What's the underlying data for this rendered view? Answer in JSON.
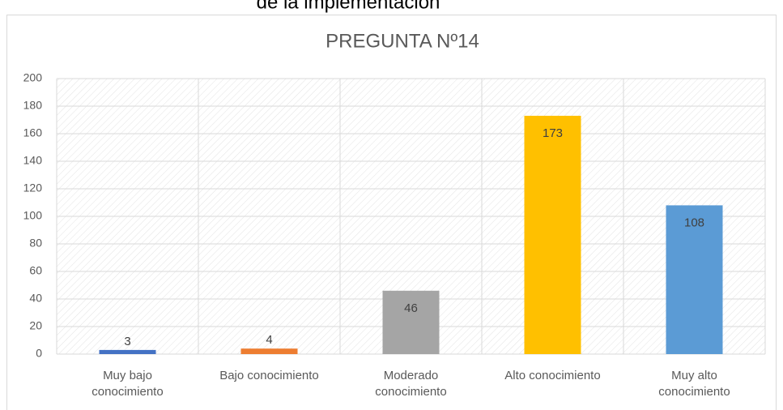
{
  "header_text": "de la implementación",
  "chart_data": {
    "type": "bar",
    "title": "PREGUNTA Nº14",
    "categories": [
      "Muy bajo conocimiento",
      "Bajo conocimiento",
      "Moderado conocimiento",
      "Alto conocimiento",
      "Muy alto conocimiento"
    ],
    "values": [
      3,
      4,
      46,
      173,
      108
    ],
    "colors": [
      "#4472c4",
      "#ed7d31",
      "#a5a5a5",
      "#ffc000",
      "#5b9bd5"
    ],
    "ylim": [
      0,
      200
    ],
    "yticks": [
      0,
      20,
      40,
      60,
      80,
      100,
      120,
      140,
      160,
      180,
      200
    ],
    "grid": true
  }
}
